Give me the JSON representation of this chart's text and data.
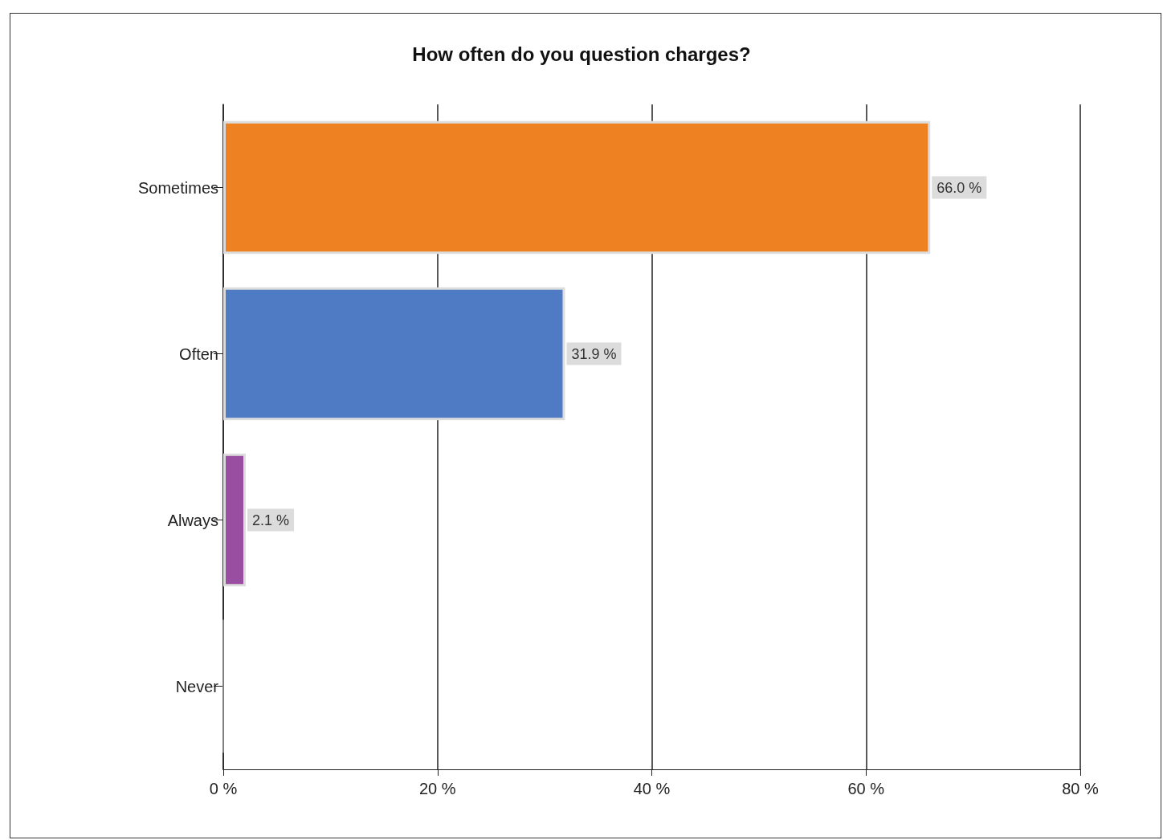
{
  "chart_data": {
    "type": "bar",
    "orientation": "horizontal",
    "title": "How often do you question charges?",
    "categories": [
      "Sometimes",
      "Often",
      "Always",
      "Never"
    ],
    "values": [
      66.0,
      31.9,
      2.1,
      0
    ],
    "colors": [
      "#ee8222",
      "#4f7bc4",
      "#9a4ea2",
      "#9a9a9a"
    ],
    "value_labels": [
      "66.0 %",
      "31.9 %",
      "2.1 %",
      null
    ],
    "xlim": [
      0,
      80
    ],
    "xticks": [
      {
        "value": 0,
        "label": "0 %"
      },
      {
        "value": 20,
        "label": "20 %"
      },
      {
        "value": 40,
        "label": "40 %"
      },
      {
        "value": 60,
        "label": "60 %"
      },
      {
        "value": 80,
        "label": "80 %"
      }
    ],
    "grid": "x"
  }
}
